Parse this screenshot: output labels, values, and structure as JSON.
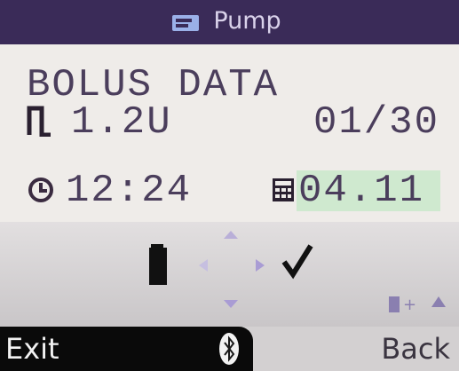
{
  "header": {
    "title": "Pump"
  },
  "screen": {
    "heading": "BOLUS DATA",
    "bolus_amount": "1.2U",
    "date": "01/30",
    "time": "12:24",
    "meter_value": "04.11"
  },
  "softkeys": {
    "left": "Exit",
    "right": "Back"
  }
}
